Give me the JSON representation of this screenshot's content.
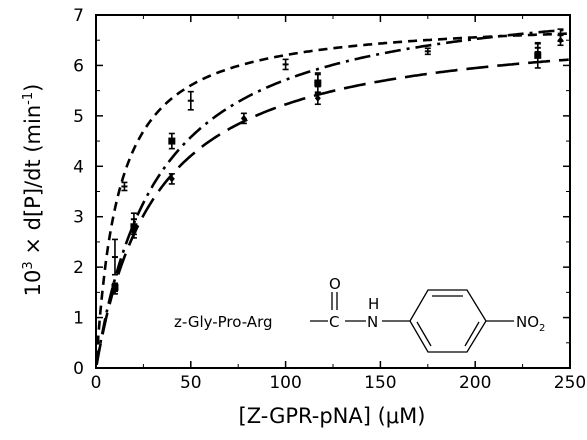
{
  "chart_data": {
    "type": "line",
    "xlabel": "[Z-GPR-pNA] (μM)",
    "ylabel_prefix": "10",
    "ylabel_exp": "3",
    "ylabel_suffix": " × d[P]/dt (min",
    "ylabel_unit_exp": "-1",
    "ylabel_close": ")",
    "xlim": [
      0,
      250
    ],
    "ylim": [
      0,
      7
    ],
    "x_ticks": [
      "0",
      "50",
      "100",
      "150",
      "200",
      "250"
    ],
    "y_ticks": [
      "0",
      "1",
      "2",
      "3",
      "4",
      "5",
      "6",
      "7"
    ],
    "grid": false,
    "legend": "none",
    "series": [
      {
        "marker": "bar-tick",
        "dash": "short",
        "fit": {
          "vmax": 6.95,
          "km": 12
        },
        "x": [
          10,
          15,
          20,
          50,
          100,
          117,
          175,
          233,
          245
        ],
        "y": [
          2.2,
          3.6,
          2.95,
          5.3,
          6.02,
          5.7,
          6.28,
          6.35,
          6.6
        ],
        "err": [
          0.35,
          0.08,
          0.12,
          0.18,
          0.1,
          0.12,
          0.06,
          0.08,
          0.12
        ]
      },
      {
        "marker": "square",
        "dash": "dash-dot",
        "fit": {
          "vmax": 7.6,
          "km": 33
        },
        "x": [
          10,
          20,
          40,
          117,
          233
        ],
        "y": [
          1.6,
          2.8,
          4.5,
          5.65,
          6.2
        ],
        "err": [
          0.08,
          0.15,
          0.15,
          0.2,
          0.25
        ]
      },
      {
        "marker": "diamond",
        "dash": "long",
        "fit": {
          "vmax": 6.9,
          "km": 32
        },
        "x": [
          10,
          20,
          40,
          78,
          117,
          245
        ],
        "y": [
          1.55,
          2.7,
          3.75,
          4.95,
          5.35,
          6.5
        ],
        "err": [
          0.08,
          0.12,
          0.1,
          0.1,
          0.12,
          0.1
        ]
      }
    ],
    "annotation": {
      "substrate": "z-Gly-Pro-Arg",
      "carbonyl_o": "O",
      "carbonyl_c": "C",
      "amide_h": "H",
      "amide_n": "N",
      "nitro_no": "NO",
      "nitro_sub": "2"
    }
  }
}
